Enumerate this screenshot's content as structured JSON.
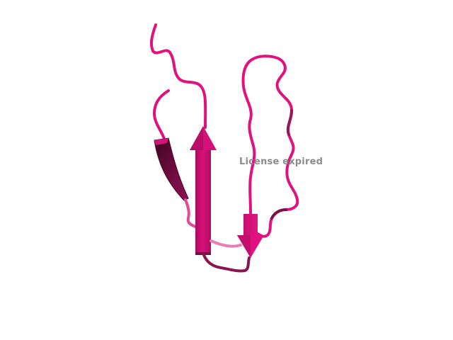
{
  "watermark": {
    "text": "License expired"
  },
  "structure": {
    "kind": "protein-ribbon",
    "colors": {
      "coil": "#e0127f",
      "coil_dark": "#7a1446",
      "coil_light": "#e87fb4",
      "strand": "#c80f70",
      "strand_dark": "#5c0a33",
      "background": "#ffffff"
    }
  }
}
